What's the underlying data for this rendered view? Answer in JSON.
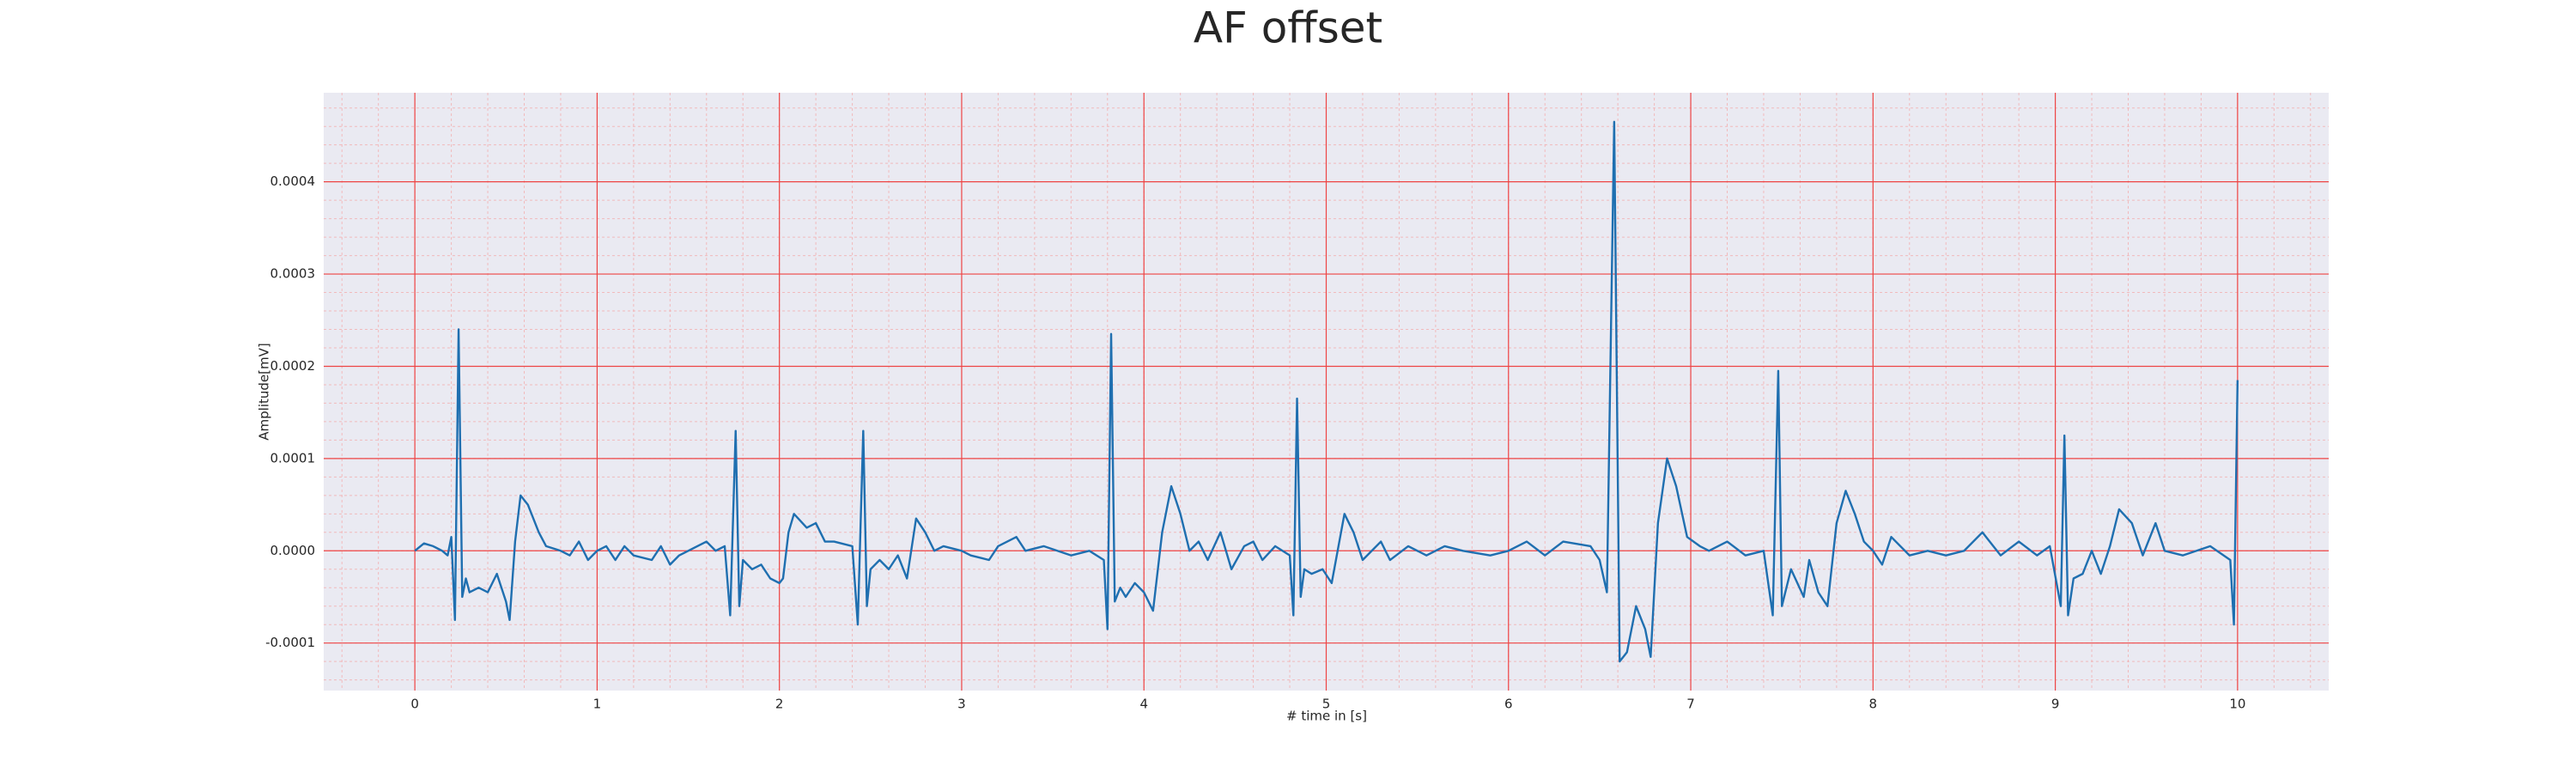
{
  "chart_data": {
    "type": "line",
    "title": "AF offset",
    "x_label": "# time in [s]",
    "y_label": "Amplitude[mV]",
    "x": [
      0,
      0.05,
      0.1,
      0.15,
      0.18,
      0.2,
      0.22,
      0.24,
      0.26,
      0.28,
      0.3,
      0.35,
      0.4,
      0.45,
      0.5,
      0.52,
      0.55,
      0.58,
      0.62,
      0.68,
      0.72,
      0.8,
      0.85,
      0.9,
      0.95,
      1.0,
      1.05,
      1.1,
      1.15,
      1.2,
      1.3,
      1.35,
      1.4,
      1.45,
      1.5,
      1.6,
      1.65,
      1.7,
      1.73,
      1.76,
      1.78,
      1.8,
      1.85,
      1.9,
      1.95,
      2.0,
      2.02,
      2.05,
      2.08,
      2.15,
      2.2,
      2.25,
      2.3,
      2.4,
      2.43,
      2.46,
      2.48,
      2.5,
      2.55,
      2.6,
      2.65,
      2.7,
      2.75,
      2.8,
      2.85,
      2.9,
      3.0,
      3.05,
      3.15,
      3.2,
      3.3,
      3.35,
      3.45,
      3.6,
      3.7,
      3.78,
      3.8,
      3.82,
      3.84,
      3.87,
      3.9,
      3.95,
      4.0,
      4.05,
      4.1,
      4.15,
      4.2,
      4.25,
      4.3,
      4.35,
      4.42,
      4.48,
      4.55,
      4.6,
      4.65,
      4.72,
      4.8,
      4.82,
      4.84,
      4.86,
      4.88,
      4.92,
      4.98,
      5.03,
      5.1,
      5.15,
      5.2,
      5.25,
      5.3,
      5.35,
      5.45,
      5.55,
      5.65,
      5.75,
      5.9,
      6.0,
      6.1,
      6.2,
      6.3,
      6.45,
      6.5,
      6.54,
      6.58,
      6.61,
      6.65,
      6.7,
      6.75,
      6.78,
      6.82,
      6.87,
      6.92,
      6.98,
      7.05,
      7.1,
      7.2,
      7.3,
      7.4,
      7.45,
      7.48,
      7.5,
      7.55,
      7.62,
      7.65,
      7.7,
      7.75,
      7.8,
      7.85,
      7.9,
      7.95,
      8.0,
      8.05,
      8.1,
      8.2,
      8.3,
      8.4,
      8.5,
      8.6,
      8.7,
      8.8,
      8.9,
      8.97,
      9.03,
      9.05,
      9.07,
      9.1,
      9.15,
      9.2,
      9.25,
      9.3,
      9.35,
      9.42,
      9.48,
      9.55,
      9.6,
      9.7,
      9.85,
      9.96,
      9.98,
      10.0
    ],
    "series": [
      {
        "name": "AF offset",
        "color": "#1f6fb0",
        "values": [
          0,
          8e-06,
          5e-06,
          0,
          -5e-06,
          1.5e-05,
          -7.5e-05,
          0.00024,
          -5e-05,
          -3e-05,
          -4.5e-05,
          -4e-05,
          -4.5e-05,
          -2.5e-05,
          -5.5e-05,
          -7.5e-05,
          1e-05,
          6e-05,
          5e-05,
          2e-05,
          5e-06,
          0,
          -5e-06,
          1e-05,
          -1e-05,
          0,
          5e-06,
          -1e-05,
          5e-06,
          -5e-06,
          -1e-05,
          5e-06,
          -1.5e-05,
          -5e-06,
          0,
          1e-05,
          0,
          5e-06,
          -7e-05,
          0.00013,
          -6e-05,
          -1e-05,
          -2e-05,
          -1.5e-05,
          -3e-05,
          -3.5e-05,
          -3e-05,
          2e-05,
          4e-05,
          2.5e-05,
          3e-05,
          1e-05,
          1e-05,
          5e-06,
          -8e-05,
          0.00013,
          -6e-05,
          -2e-05,
          -1e-05,
          -2e-05,
          -5e-06,
          -3e-05,
          3.5e-05,
          2e-05,
          0,
          5e-06,
          0,
          -5e-06,
          -1e-05,
          5e-06,
          1.5e-05,
          0,
          5e-06,
          -5e-06,
          0,
          -1e-05,
          -8.5e-05,
          0.000235,
          -5.5e-05,
          -4e-05,
          -5e-05,
          -3.5e-05,
          -4.5e-05,
          -6.5e-05,
          2e-05,
          7e-05,
          4e-05,
          0,
          1e-05,
          -1e-05,
          2e-05,
          -2e-05,
          5e-06,
          1e-05,
          -1e-05,
          5e-06,
          -5e-06,
          -7e-05,
          0.000165,
          -5e-05,
          -2e-05,
          -2.5e-05,
          -2e-05,
          -3.5e-05,
          4e-05,
          2e-05,
          -1e-05,
          0,
          1e-05,
          -1e-05,
          5e-06,
          -5e-06,
          5e-06,
          0,
          -5e-06,
          0,
          1e-05,
          -5e-06,
          1e-05,
          5e-06,
          -1e-05,
          -4.5e-05,
          0.000465,
          -0.00012,
          -0.00011,
          -6e-05,
          -8.5e-05,
          -0.000115,
          3e-05,
          0.0001,
          7e-05,
          1.5e-05,
          5e-06,
          0,
          1e-05,
          -5e-06,
          0,
          -7e-05,
          0.000195,
          -6e-05,
          -2e-05,
          -5e-05,
          -1e-05,
          -4.5e-05,
          -6e-05,
          3e-05,
          6.5e-05,
          4e-05,
          1e-05,
          0,
          -1.5e-05,
          1.5e-05,
          -5e-06,
          0,
          -5e-06,
          0,
          2e-05,
          -5e-06,
          1e-05,
          -5e-06,
          5e-06,
          -6e-05,
          0.000125,
          -7e-05,
          -3e-05,
          -2.5e-05,
          0,
          -2.5e-05,
          5e-06,
          4.5e-05,
          3e-05,
          -5e-06,
          3e-05,
          0,
          -5e-06,
          5e-06,
          -1e-05,
          -8e-05,
          0.000185
        ]
      }
    ],
    "xlim": [
      -0.5,
      10.5
    ],
    "xticks": [
      0,
      1,
      2,
      3,
      4,
      5,
      6,
      7,
      8,
      9,
      10
    ],
    "ylim": [
      -0.0001515,
      0.0004965
    ],
    "yticks": [
      -0.0001,
      {
        "value": 0,
        "label": "0.0000"
      },
      0.0001,
      0.0002,
      0.0003,
      0.0004
    ],
    "grid": true,
    "minor_grid": true
  }
}
